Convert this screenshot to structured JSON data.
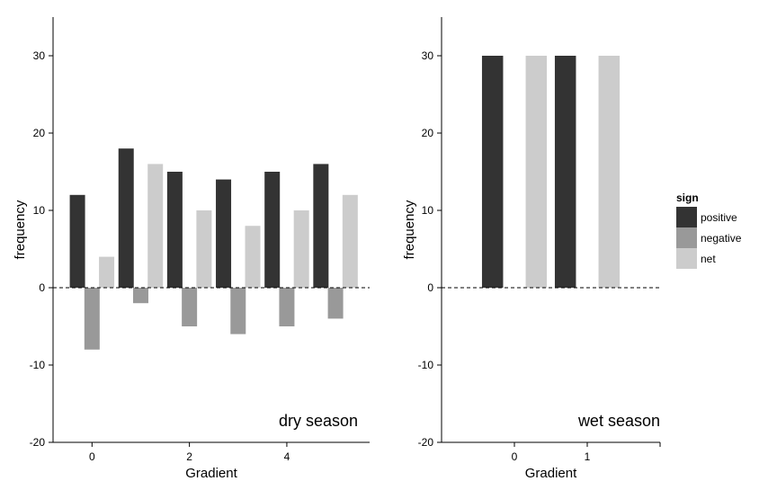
{
  "colors": {
    "positive": "#333333",
    "negative": "#999999",
    "net": "#cccccc"
  },
  "legend": {
    "title": "sign",
    "items": [
      {
        "key": "positive",
        "label": "positive"
      },
      {
        "key": "negative",
        "label": "negative"
      },
      {
        "key": "net",
        "label": "net"
      }
    ]
  },
  "chart_data": [
    {
      "type": "bar",
      "annotation": "dry season",
      "xlabel": "Gradient",
      "ylabel": "frequency",
      "ylim": [
        -20,
        35
      ],
      "yticks": [
        -20,
        -10,
        0,
        10,
        20,
        30
      ],
      "xlim": [
        -0.8,
        5.7
      ],
      "xticks": [
        0,
        2,
        4
      ],
      "reference_line": 0,
      "series": [
        {
          "name": "positive",
          "x": [
            -0.3,
            0.7,
            1.7,
            2.7,
            3.7,
            4.7
          ],
          "values": [
            12,
            18,
            15,
            14,
            15,
            16
          ]
        },
        {
          "name": "negative",
          "x": [
            0.0,
            1.0,
            2.0,
            3.0,
            4.0,
            5.0
          ],
          "values": [
            -8,
            -2,
            -5,
            -6,
            -5,
            -4
          ]
        },
        {
          "name": "net",
          "x": [
            0.3,
            1.3,
            2.3,
            3.3,
            4.3,
            5.3
          ],
          "values": [
            4,
            16,
            10,
            8,
            10,
            12
          ]
        }
      ]
    },
    {
      "type": "bar",
      "annotation": "wet season",
      "xlabel": "Gradient",
      "ylabel": "frequency",
      "ylim": [
        -20,
        35
      ],
      "yticks": [
        -20,
        -10,
        0,
        10,
        20,
        30
      ],
      "xlim": [
        -1,
        2
      ],
      "xticks": [
        0,
        1
      ],
      "reference_line": 0,
      "series": [
        {
          "name": "positive",
          "x": [
            -0.3,
            0.7
          ],
          "values": [
            30,
            30
          ]
        },
        {
          "name": "negative",
          "x": [
            0.0,
            1.0
          ],
          "values": [
            0,
            0
          ]
        },
        {
          "name": "net",
          "x": [
            0.3,
            1.3
          ],
          "values": [
            30,
            30
          ]
        }
      ]
    }
  ]
}
